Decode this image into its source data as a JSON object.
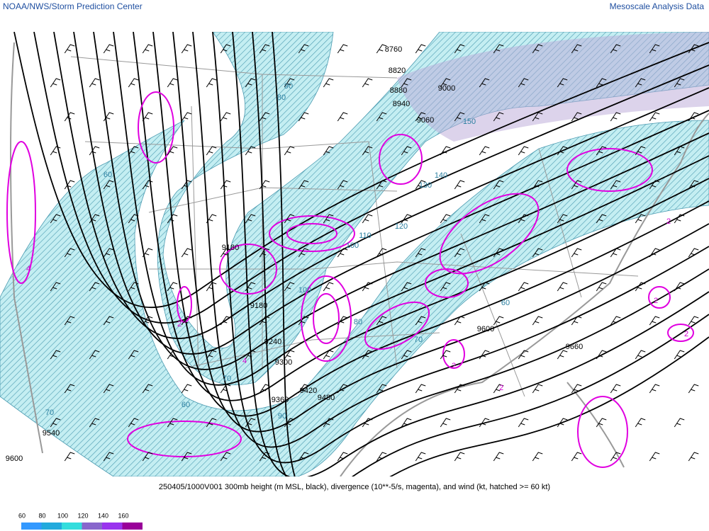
{
  "header": {
    "left_title": "NOAA/NWS/Storm Prediction Center",
    "right_title": "Mesoscale Analysis Data"
  },
  "map": {
    "height_labels": [
      "8760",
      "8820",
      "8880",
      "8940",
      "9000",
      "9060",
      "9180",
      "9180",
      "9240",
      "9300",
      "9360",
      "9420",
      "9480",
      "9540",
      "9600",
      "9600",
      "9660"
    ],
    "isotach_labels": [
      "60",
      "70",
      "60",
      "70",
      "90",
      "100",
      "110",
      "120",
      "130",
      "140",
      "150",
      "100",
      "60",
      "70",
      "80",
      "80",
      "90"
    ],
    "divergence_labels": [
      "2",
      "2",
      "2",
      "2",
      "2",
      "2",
      "4",
      "4"
    ]
  },
  "caption": "250405/1000V001 300mb height (m MSL, black), divergence (10**-5/s, magenta), and wind (kt, hatched >= 60 kt)",
  "legend": {
    "values": [
      60,
      80,
      100,
      120,
      140,
      160
    ],
    "colors": [
      "#3399ff",
      "#22aadd",
      "#33dddd",
      "#8866cc",
      "#9933ee",
      "#990099"
    ]
  }
}
